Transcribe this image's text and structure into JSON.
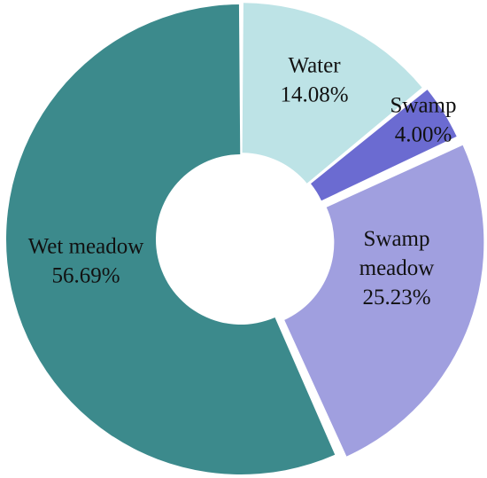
{
  "chart_data": {
    "type": "pie",
    "donut": true,
    "title": "",
    "slices": [
      {
        "label_lines": [
          "Water"
        ],
        "value_text": "14.08%",
        "value": 14.08,
        "color": "#bde3e6"
      },
      {
        "label_lines": [
          "Swamp"
        ],
        "value_text": "4.00%",
        "value": 4.0,
        "color": "#6b6bd1"
      },
      {
        "label_lines": [
          "Swamp",
          "meadow"
        ],
        "value_text": "25.23%",
        "value": 25.23,
        "color": "#a09fdf"
      },
      {
        "label_lines": [
          "Wet meadow"
        ],
        "value_text": "56.69%",
        "value": 56.69,
        "color": "#3c8a8c"
      }
    ],
    "legend": "none"
  }
}
